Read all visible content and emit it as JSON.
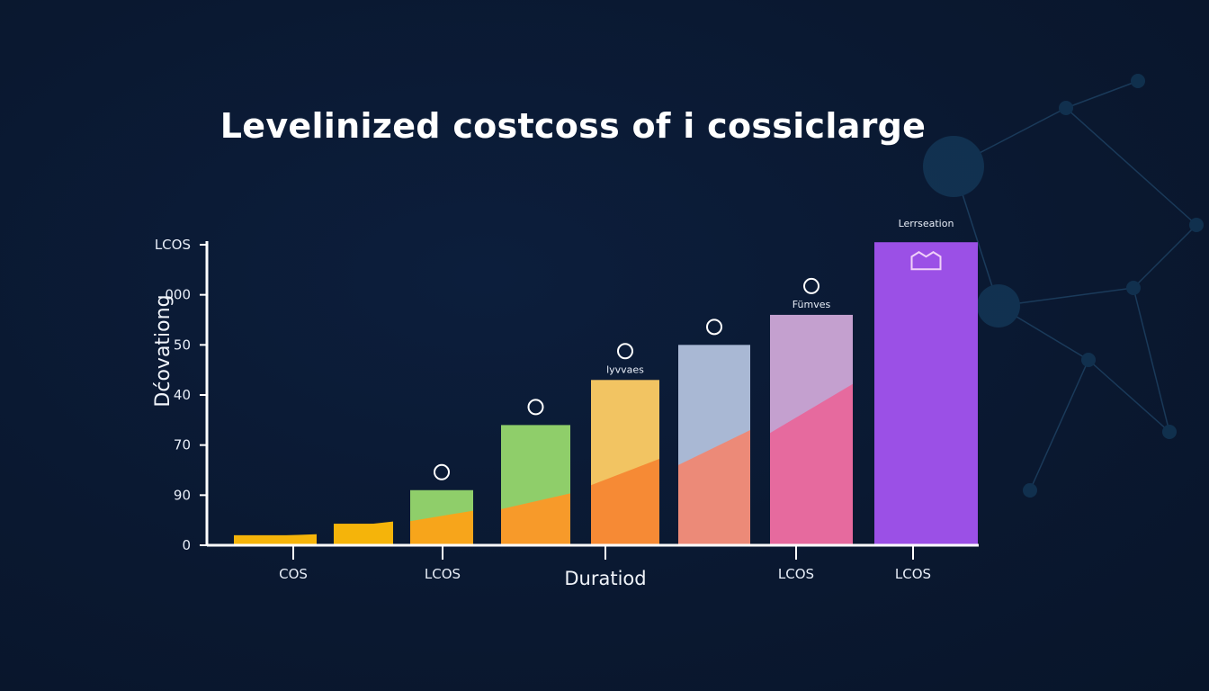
{
  "chart_data": {
    "type": "bar",
    "title": "Levelinized costcoss of i cossiclarge",
    "xlabel": "Duratiod",
    "ylabel": "Dćovationg",
    "y_tick_labels": [
      "0",
      "90",
      "70",
      "40",
      "50",
      "000",
      "LCOS"
    ],
    "ylim": [
      0,
      6
    ],
    "x_tick_labels": [
      "COS",
      "LCOS",
      "LCOS",
      "LCOS"
    ],
    "values": [
      0.2,
      0.43,
      1.1,
      2.4,
      3.3,
      4.0,
      4.6,
      6.05
    ],
    "lower_segment_values": [
      0.2,
      0.43,
      0.6,
      0.9,
      1.5,
      2.0,
      2.8,
      6.05
    ],
    "bar_colors": [
      "#f5b40a",
      "#f5b40a",
      "#8fce6a",
      "#8fce6a",
      "#f2c462",
      "#a9b8d4",
      "#c4a0cf",
      "#9b50e6"
    ],
    "lower_colors": [
      "#f5b40a",
      "#f5b40a",
      "#f7a51b",
      "#f79a2a",
      "#f68a35",
      "#ec8a78",
      "#e66a9e",
      "#a040e0"
    ],
    "annotations": [
      "",
      "",
      "",
      "",
      "lyvvaes",
      "",
      "Fümves",
      "Lerrseation"
    ],
    "icons": [
      "",
      "",
      "globe-icon",
      "pen-icon",
      "magnifier-icon",
      "antenna-icon",
      "gear-icon",
      "building-icon"
    ],
    "grid": false,
    "background": "#0a1830"
  }
}
